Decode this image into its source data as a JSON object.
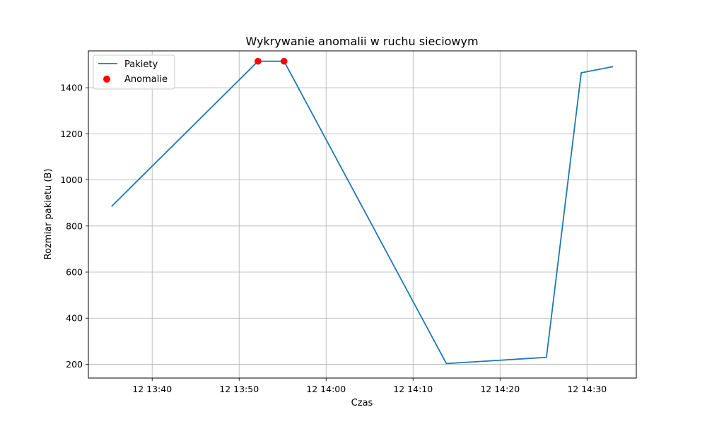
{
  "chart_data": {
    "type": "line",
    "title": "Wykrywanie anomalii w ruchu sieciowym",
    "xlabel": "Czas",
    "ylabel": "Rozmiar pakietu (B)",
    "xlim": [
      "13:32:40",
      "14:35:40"
    ],
    "ylim": [
      140,
      1560
    ],
    "x_ticks": [
      "12 13:40",
      "12 13:50",
      "12 14:00",
      "12 14:10",
      "12 14:20",
      "12 14:30"
    ],
    "y_ticks": [
      200,
      400,
      600,
      800,
      1000,
      1200,
      1400
    ],
    "grid": true,
    "legend_position": "upper-left",
    "series": [
      {
        "name": "Pakiety",
        "color": "#1f77b4",
        "x": [
          "13:35:20",
          "13:52:10",
          "13:55:10",
          "14:13:50",
          "14:25:20",
          "14:29:20",
          "14:33:00"
        ],
        "y": [
          885,
          1515,
          1515,
          203,
          230,
          1465,
          1492
        ]
      },
      {
        "name": "Anomalie",
        "type": "scatter",
        "color": "#ff0000",
        "x": [
          "13:52:10",
          "13:55:10"
        ],
        "y": [
          1515,
          1515
        ]
      }
    ]
  }
}
